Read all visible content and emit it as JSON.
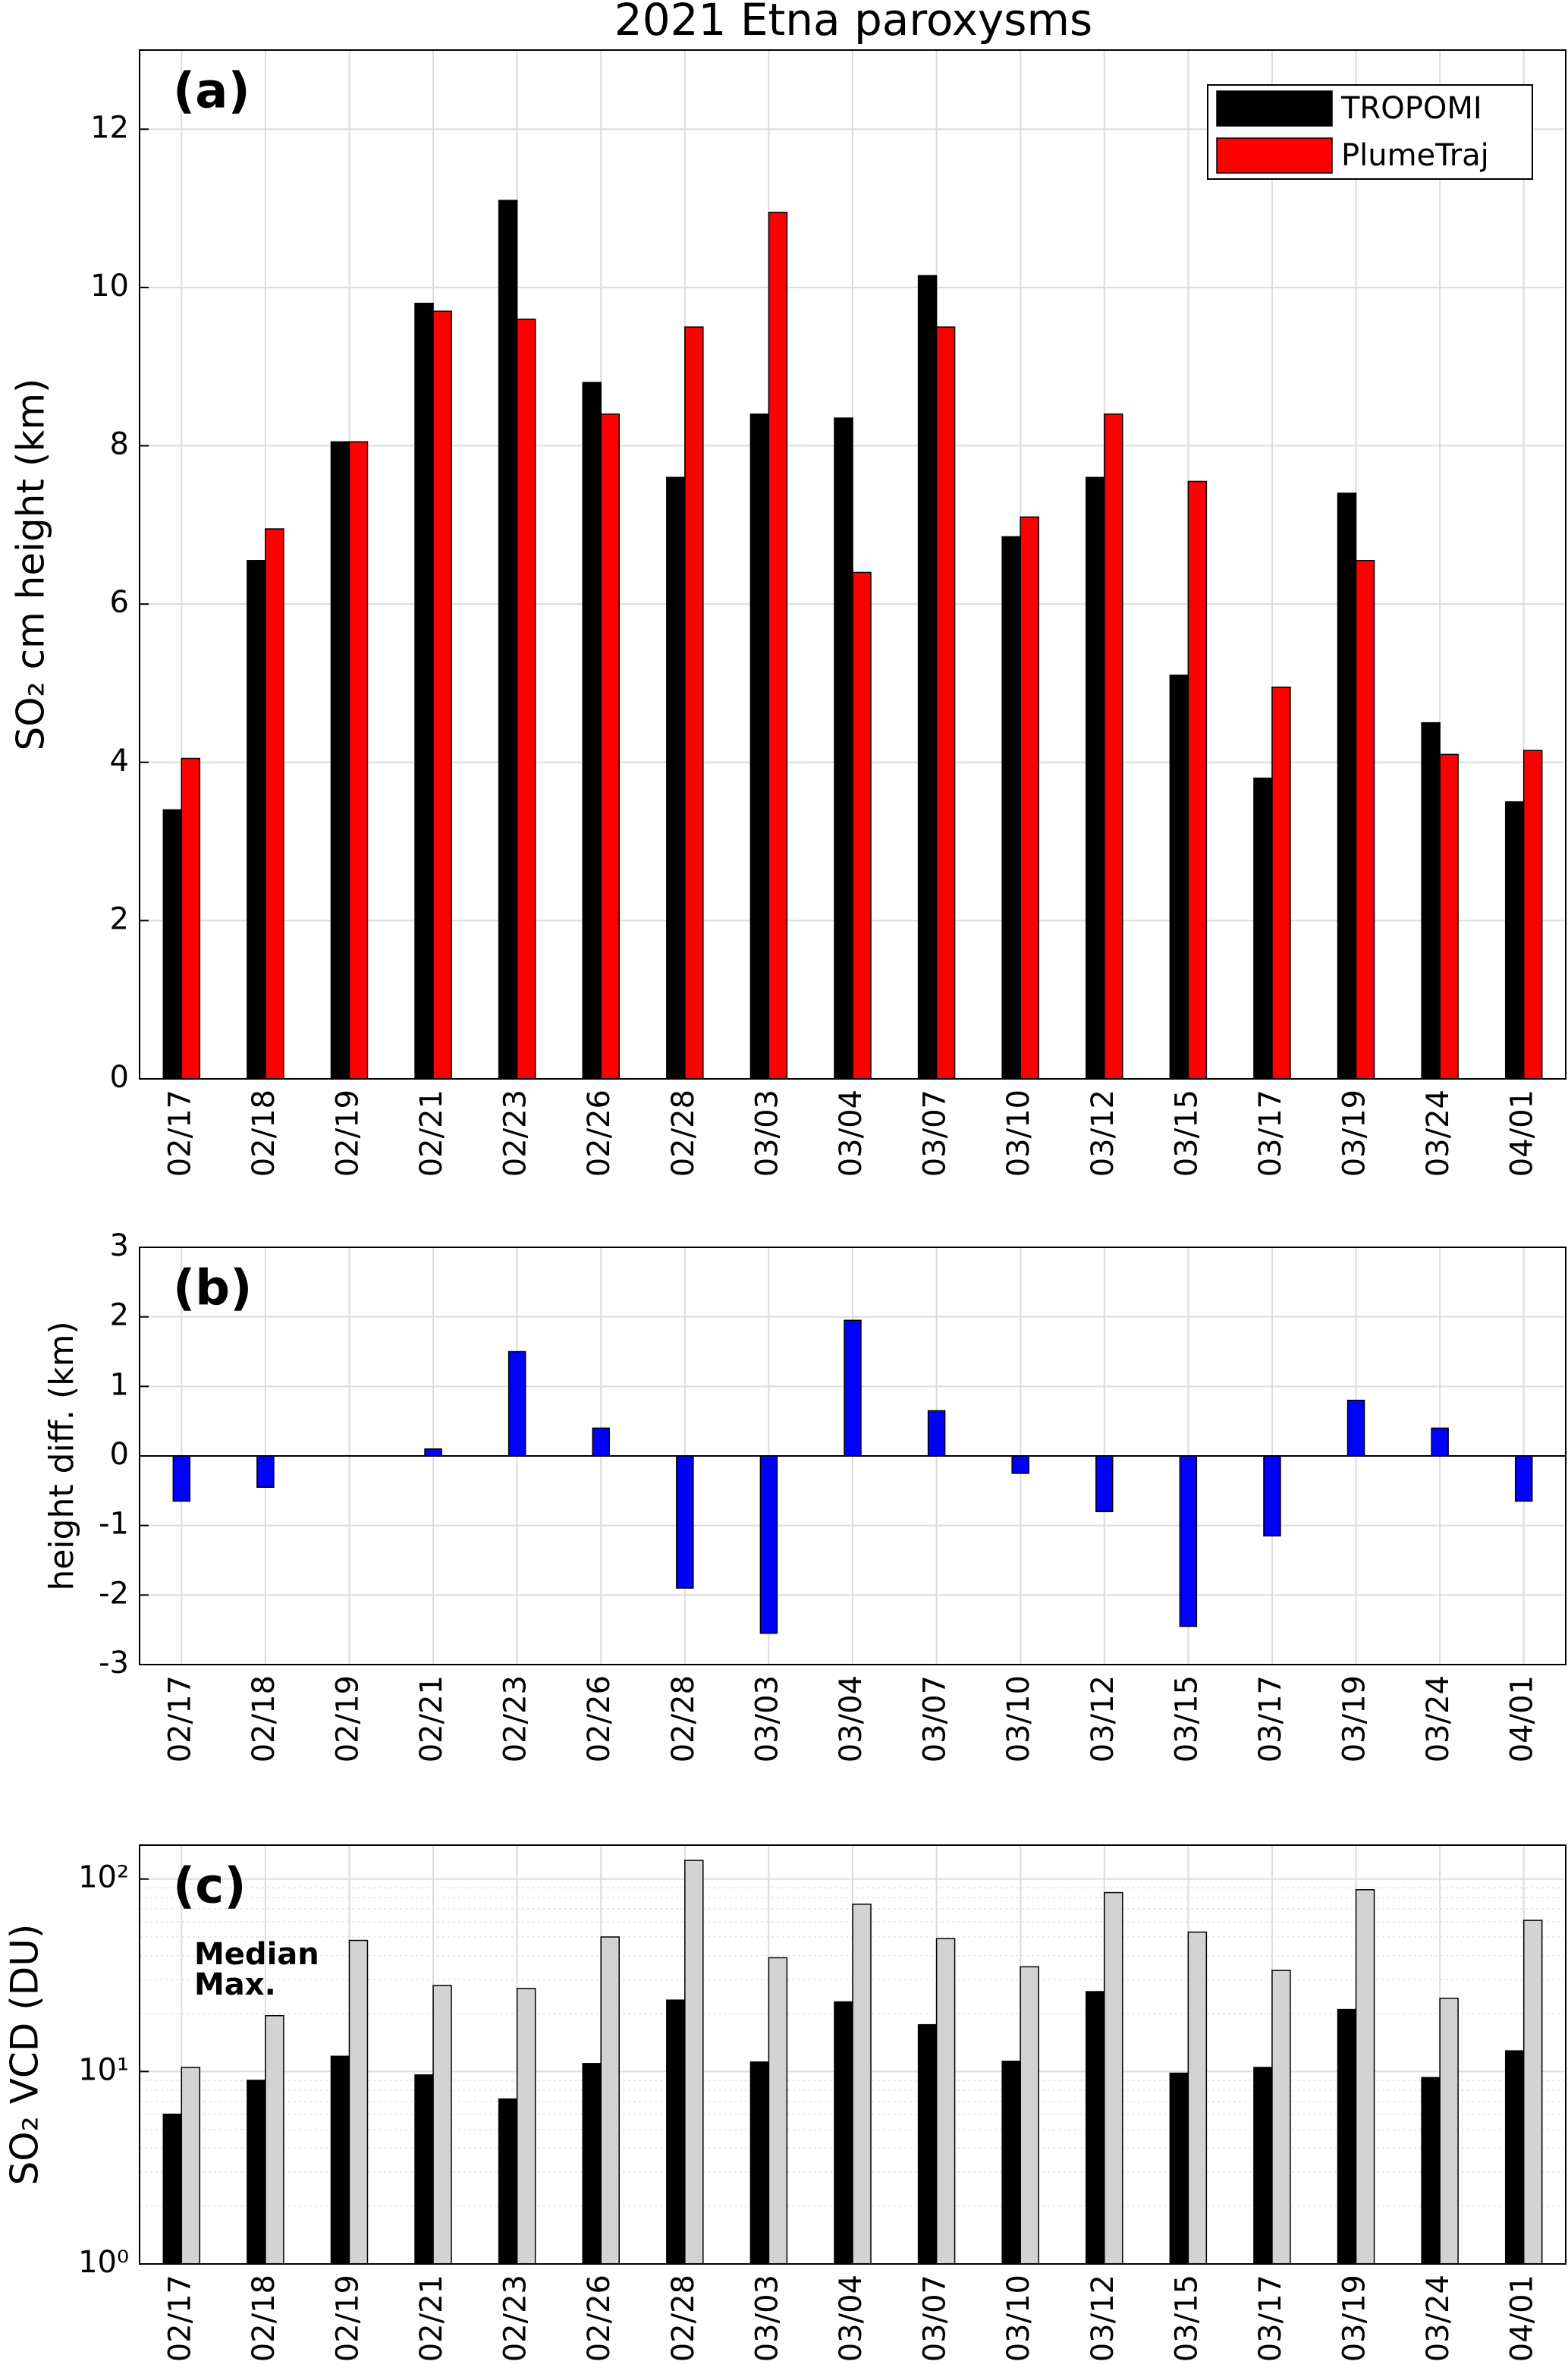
{
  "chart_data": [
    {
      "type": "bar",
      "title": "2021 Etna paroxysms",
      "panel_label": "(a)",
      "ylabel": "SO₂ cm height (km)",
      "categories": [
        "02/17",
        "02/18",
        "02/19",
        "02/21",
        "02/23",
        "02/26",
        "02/28",
        "03/03",
        "03/04",
        "03/07",
        "03/10",
        "03/12",
        "03/15",
        "03/17",
        "03/19",
        "03/24",
        "04/01"
      ],
      "series": [
        {
          "name": "TROPOMI",
          "color": "#000000",
          "values": [
            3.4,
            6.55,
            8.05,
            9.8,
            11.1,
            8.8,
            7.6,
            8.4,
            8.35,
            10.15,
            6.85,
            7.6,
            5.1,
            3.8,
            7.4,
            4.5,
            3.5
          ]
        },
        {
          "name": "PlumeTraj",
          "color": "#ff0000",
          "values": [
            4.05,
            6.95,
            8.05,
            9.7,
            9.6,
            8.4,
            9.5,
            10.95,
            6.4,
            9.5,
            7.1,
            8.4,
            7.55,
            4.95,
            6.55,
            4.1,
            4.15
          ]
        }
      ],
      "ylim": [
        0,
        13
      ],
      "yticks": [
        0,
        2,
        4,
        6,
        8,
        10,
        12
      ],
      "grid": true,
      "legend": "upper right",
      "legend_style": "box"
    },
    {
      "type": "bar",
      "panel_label": "(b)",
      "ylabel": "height diff. (km)",
      "categories": [
        "02/17",
        "02/18",
        "02/19",
        "02/21",
        "02/23",
        "02/26",
        "02/28",
        "03/03",
        "03/04",
        "03/07",
        "03/10",
        "03/12",
        "03/15",
        "03/17",
        "03/19",
        "03/24",
        "04/01"
      ],
      "values": [
        -0.65,
        -0.45,
        0,
        0.1,
        1.5,
        0.4,
        -1.9,
        -2.55,
        1.95,
        0.65,
        -0.25,
        -0.8,
        -2.45,
        -1.15,
        0.8,
        0.4,
        -0.65
      ],
      "color": "#0000ff",
      "ylim": [
        -3,
        3
      ],
      "yticks": [
        -3,
        -2,
        -1,
        0,
        1,
        2,
        3
      ],
      "grid": true
    },
    {
      "type": "bar",
      "panel_label": "(c)",
      "ylabel": "SO₂ VCD (DU)",
      "log_scale": true,
      "categories": [
        "02/17",
        "02/18",
        "02/19",
        "02/21",
        "02/23",
        "02/26",
        "02/28",
        "03/03",
        "03/04",
        "03/07",
        "03/10",
        "03/12",
        "03/15",
        "03/17",
        "03/19",
        "03/24",
        "04/01"
      ],
      "series": [
        {
          "name": "Median",
          "color": "#000000",
          "text_color": "#000000",
          "values": [
            6,
            9,
            12,
            9.6,
            7.2,
            11,
            23.5,
            11.2,
            23,
            17.5,
            11.3,
            26,
            9.8,
            10.5,
            21,
            9.3,
            12.8
          ]
        },
        {
          "name": "Max.",
          "color": "#d3d3d3",
          "text_color": "#a0a0a0",
          "values": [
            10.5,
            19.5,
            48,
            28,
            27,
            50,
            125,
            39,
            74,
            49,
            35,
            85,
            53,
            33.5,
            88,
            24,
            61
          ]
        }
      ],
      "ylim": [
        1,
        150
      ],
      "yticks": [
        {
          "value": 1,
          "label": "10⁰"
        },
        {
          "value": 10,
          "label": "10¹"
        },
        {
          "value": 100,
          "label": "10²"
        }
      ],
      "minor_yticks": [
        2,
        3,
        4,
        5,
        6,
        7,
        8,
        9,
        20,
        30,
        40,
        50,
        60,
        70,
        80,
        90
      ],
      "grid": true,
      "legend": "upper left",
      "legend_style": "text"
    }
  ]
}
